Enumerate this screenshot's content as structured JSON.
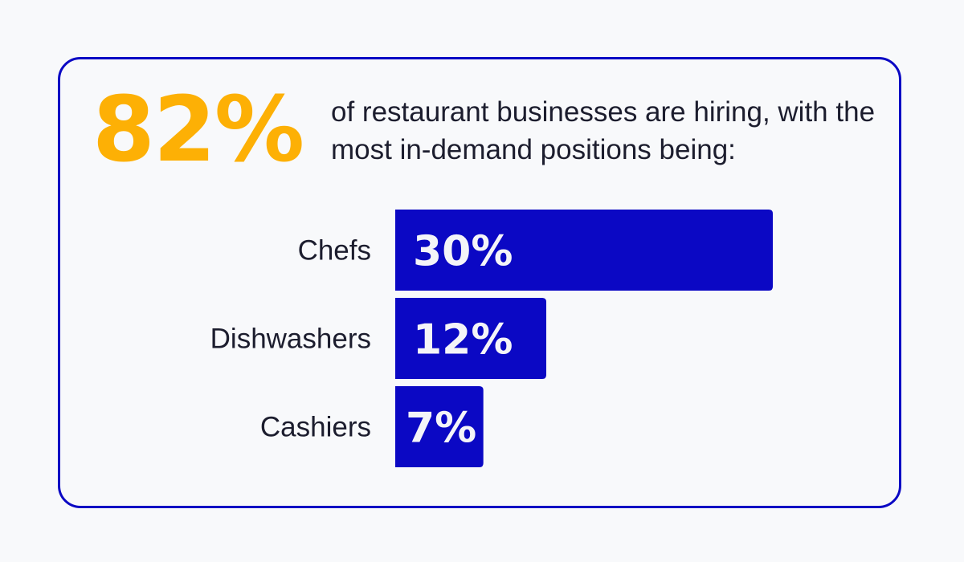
{
  "headline": {
    "stat": "82%",
    "text": "of restaurant businesses are hiring, with the most in-demand positions being:"
  },
  "colors": {
    "accent": "#fdb005",
    "bar": "#0b08c4",
    "border": "#0b08c4",
    "text": "#1c1d2e",
    "bar_label": "#f4f4f8",
    "background": "#f8f9fb"
  },
  "chart_data": {
    "type": "bar",
    "orientation": "horizontal",
    "categories": [
      "Chefs",
      "Dishwashers",
      "Cashiers"
    ],
    "values": [
      30,
      12,
      7
    ],
    "value_labels": [
      "30%",
      "12%",
      "7%"
    ],
    "unit": "%",
    "title": "",
    "xlabel": "",
    "ylabel": "",
    "grid": false,
    "legend": "none"
  }
}
